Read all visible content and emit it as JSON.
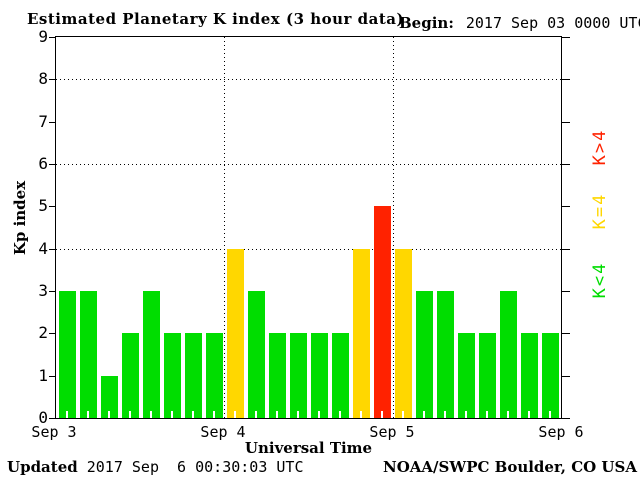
{
  "header": {
    "title": "Estimated Planetary K index (3 hour data)",
    "begin_label": "Begin:",
    "begin_value": "2017 Sep 03 0000 UTC"
  },
  "footer": {
    "updated_label": "Updated",
    "updated_value": "2017 Sep  6 00:30:03 UTC",
    "source": "NOAA/SWPC Boulder, CO USA"
  },
  "chart_data": {
    "type": "bar",
    "title": "Estimated Planetary K index (3 hour data)",
    "begin": "2017 Sep 03 0000 UTC",
    "updated": "2017 Sep  6 00:30:03 UTC",
    "source": "NOAA/SWPC Boulder, CO USA",
    "xlabel": "Universal Time",
    "ylabel": "Kp index",
    "ylim": [
      0,
      9
    ],
    "yticks": [
      0,
      1,
      2,
      3,
      4,
      5,
      6,
      7,
      8,
      9
    ],
    "grid_y": [
      4,
      6,
      8
    ],
    "grid_x_days": [
      1,
      2
    ],
    "x_day_labels": [
      "Sep 3",
      "Sep 4",
      "Sep 5",
      "Sep 6"
    ],
    "hours_per_bar": 3,
    "bars_per_day": 8,
    "values": [
      3,
      3,
      1,
      2,
      3,
      2,
      2,
      2,
      4,
      3,
      2,
      2,
      2,
      2,
      4,
      5,
      4,
      3,
      3,
      2,
      2,
      3,
      2,
      2
    ],
    "colors": {
      "low": "#00dd00",
      "mid": "#ffd700",
      "high": "#ff2200"
    },
    "threshold": 4,
    "legend": [
      {
        "label": "K>4",
        "level": "high"
      },
      {
        "label": "K=4",
        "level": "mid"
      },
      {
        "label": "K<4",
        "level": "low"
      }
    ],
    "legend_position": "right"
  }
}
